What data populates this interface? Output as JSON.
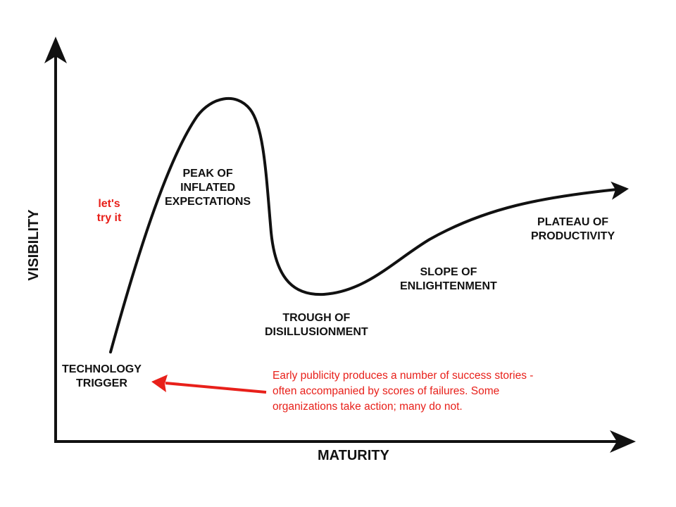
{
  "colors": {
    "curve": "#111111",
    "axes": "#111111",
    "accent": "#e8201a",
    "background": "#ffffff"
  },
  "axes": {
    "x_label": "MATURITY",
    "y_label": "VISIBILITY"
  },
  "phases": {
    "trigger": [
      "TECHNOLOGY",
      "TRIGGER"
    ],
    "peak": [
      "PEAK OF",
      "INFLATED",
      "EXPECTATIONS"
    ],
    "trough": [
      "TROUGH OF",
      "DISILLUSIONMENT"
    ],
    "slope": [
      "SLOPE OF",
      "ENLIGHTENMENT"
    ],
    "plateau": [
      "PLATEAU OF",
      "PRODUCTIVITY"
    ]
  },
  "annotations": {
    "lets_try": [
      "let's",
      "try it"
    ],
    "publicity": [
      "Early publicity produces a number of success stories -",
      "often accompanied by scores of failures. Some",
      "organizations take action; many do not."
    ]
  }
}
